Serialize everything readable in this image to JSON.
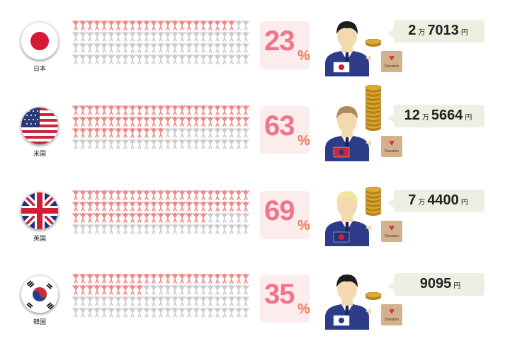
{
  "rows": [
    {
      "country": "日本",
      "flag": "japan",
      "percent_number": "23",
      "percent_sign": "%",
      "percent_value": 23,
      "amount": {
        "man": "2",
        "man_unit": "万",
        "rest": "7013",
        "yen_unit": "円"
      },
      "coins": 1,
      "hair_color": "#1e1e1e",
      "donation_label": "Donation"
    },
    {
      "country": "米国",
      "flag": "usa",
      "percent_number": "63",
      "percent_sign": "%",
      "percent_value": 63,
      "amount": {
        "man": "12",
        "man_unit": "万",
        "rest": "5664",
        "yen_unit": "円"
      },
      "coins": 10,
      "hair_color": "#b08a5a",
      "donation_label": "Donation"
    },
    {
      "country": "英国",
      "flag": "uk",
      "percent_number": "69",
      "percent_sign": "%",
      "percent_value": 69,
      "amount": {
        "man": "7",
        "man_unit": "万",
        "rest": "4400",
        "yen_unit": "円"
      },
      "coins": 6,
      "hair_color": "#f0e6a0",
      "donation_label": "Donation"
    },
    {
      "country": "韓国",
      "flag": "korea",
      "percent_number": "35",
      "percent_sign": "%",
      "percent_value": 35,
      "amount": {
        "man": "",
        "man_unit": "",
        "rest": "9095",
        "yen_unit": "円"
      },
      "coins": 1,
      "hair_color": "#1e1e1e",
      "donation_label": "Donation"
    }
  ],
  "colors": {
    "person_active": "#f08888",
    "person_inactive": "#cccccc",
    "percent_text": "#f0748a",
    "suit": "#2d3c88",
    "coin": "#dcaa2c"
  }
}
